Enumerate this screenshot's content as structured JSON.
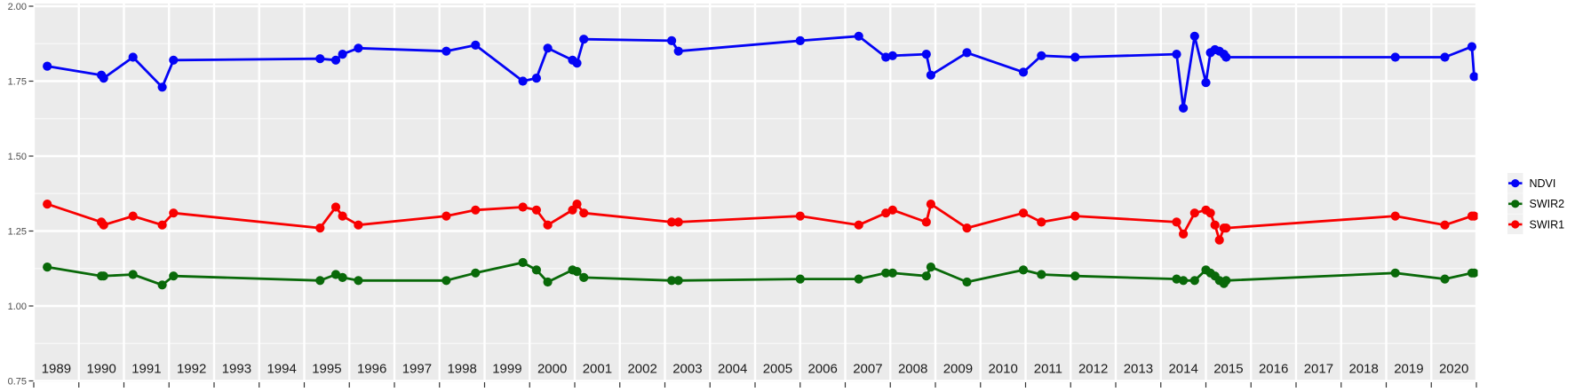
{
  "chart_data": {
    "type": "line",
    "title": "",
    "xlabel": "",
    "ylabel": "",
    "xlim": [
      1989,
      2021
    ],
    "ylim": [
      0.75,
      2.0
    ],
    "grid": true,
    "legend_position": "right-center",
    "y_ticks": [
      {
        "value": 0.75,
        "label": "0.75"
      },
      {
        "value": 1.0,
        "label": "1.00"
      },
      {
        "value": 1.25,
        "label": "1.25"
      },
      {
        "value": 1.5,
        "label": "1.50"
      },
      {
        "value": 1.75,
        "label": "1.75"
      },
      {
        "value": 2.0,
        "label": "2.00"
      }
    ],
    "y_minor_ticks": [
      0.875,
      1.125,
      1.375,
      1.625,
      1.875
    ],
    "x_gridline_years": [
      1989,
      1990,
      1991,
      1992,
      1993,
      1994,
      1995,
      1996,
      1997,
      1998,
      1999,
      2000,
      2001,
      2002,
      2003,
      2004,
      2005,
      2006,
      2007,
      2008,
      2009,
      2010,
      2011,
      2012,
      2013,
      2014,
      2015,
      2016,
      2017,
      2018,
      2019,
      2020,
      2021
    ],
    "x_year_labels": [
      "1989",
      "1990",
      "1991",
      "1992",
      "1993",
      "1994",
      "1995",
      "1996",
      "1997",
      "1998",
      "1999",
      "2000",
      "2001",
      "2002",
      "2003",
      "2004",
      "2005",
      "2006",
      "2007",
      "2008",
      "2009",
      "2010",
      "2011",
      "2012",
      "2013",
      "2014",
      "2015",
      "2016",
      "2017",
      "2018",
      "2019",
      "2020"
    ],
    "x": [
      1989.3,
      1990.5,
      1990.55,
      1991.2,
      1991.85,
      1992.1,
      1995.35,
      1995.7,
      1995.85,
      1996.2,
      1998.15,
      1998.8,
      1999.85,
      2000.15,
      2000.4,
      2000.95,
      2001.05,
      2001.2,
      2003.15,
      2003.3,
      2006.0,
      2007.3,
      2007.9,
      2008.05,
      2008.8,
      2008.9,
      2009.7,
      2010.95,
      2011.35,
      2012.1,
      2014.35,
      2014.5,
      2014.75,
      2015.0,
      2015.1,
      2015.2,
      2015.3,
      2015.4,
      2015.45,
      2019.2,
      2020.3,
      2020.9,
      2020.95
    ],
    "series": [
      {
        "name": "NDVI",
        "color": "#0404f5",
        "values": [
          1.8,
          1.77,
          1.76,
          1.83,
          1.73,
          1.82,
          1.825,
          1.82,
          1.84,
          1.86,
          1.85,
          1.87,
          1.75,
          1.76,
          1.86,
          1.82,
          1.81,
          1.89,
          1.885,
          1.85,
          1.885,
          1.9,
          1.83,
          1.835,
          1.84,
          1.77,
          1.845,
          1.78,
          1.835,
          1.83,
          1.84,
          1.66,
          1.9,
          1.745,
          1.845,
          1.855,
          1.85,
          1.84,
          1.83,
          1.83,
          1.83,
          1.865,
          1.765
        ]
      },
      {
        "name": "SWIR2",
        "color": "#096909",
        "values": [
          1.13,
          1.1,
          1.1,
          1.105,
          1.07,
          1.1,
          1.085,
          1.105,
          1.095,
          1.085,
          1.085,
          1.11,
          1.145,
          1.12,
          1.08,
          1.12,
          1.115,
          1.095,
          1.085,
          1.085,
          1.09,
          1.09,
          1.11,
          1.11,
          1.1,
          1.13,
          1.08,
          1.12,
          1.105,
          1.1,
          1.09,
          1.085,
          1.085,
          1.12,
          1.11,
          1.1,
          1.085,
          1.075,
          1.085,
          1.11,
          1.09,
          1.11,
          1.11
        ]
      },
      {
        "name": "SWIR1",
        "color": "#f80000",
        "values": [
          1.34,
          1.28,
          1.27,
          1.3,
          1.27,
          1.31,
          1.26,
          1.33,
          1.3,
          1.27,
          1.3,
          1.32,
          1.33,
          1.32,
          1.27,
          1.32,
          1.34,
          1.31,
          1.28,
          1.28,
          1.3,
          1.27,
          1.31,
          1.32,
          1.28,
          1.34,
          1.26,
          1.31,
          1.28,
          1.3,
          1.28,
          1.24,
          1.31,
          1.32,
          1.31,
          1.27,
          1.22,
          1.26,
          1.26,
          1.3,
          1.27,
          1.3,
          1.3
        ]
      }
    ]
  },
  "legend": {
    "items": [
      {
        "label": "NDVI",
        "color": "#0404f5"
      },
      {
        "label": "SWIR2",
        "color": "#096909"
      },
      {
        "label": "SWIR1",
        "color": "#f80000"
      }
    ]
  },
  "colors": {
    "panel_background": "#ebebeb",
    "gridline": "#ffffff",
    "tick_mark": "#333333",
    "y_tick_text": "#4d4d4d",
    "x_year_text": "#1a1a1a",
    "legend_key_background": "#f0f0f0",
    "outer_background": "#ffffff"
  }
}
